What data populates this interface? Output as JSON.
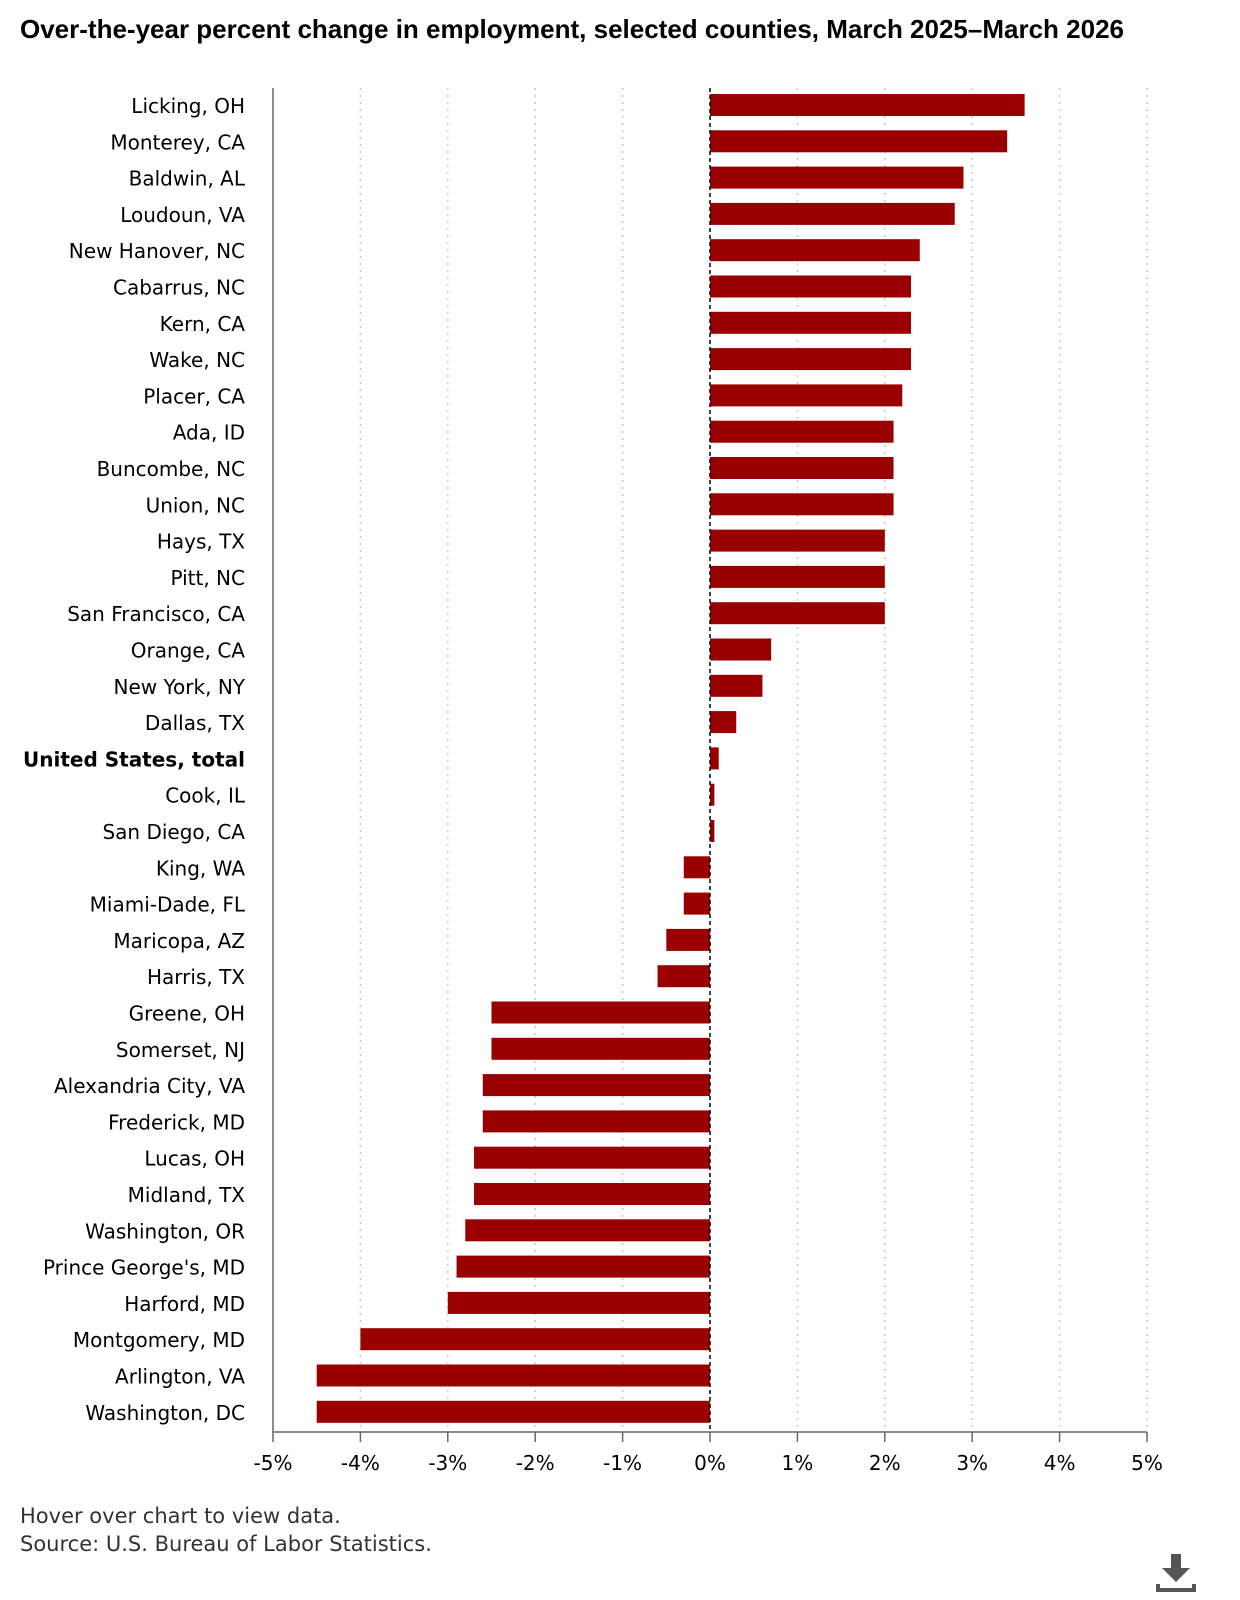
{
  "title": "Over-the-year percent change in employment, selected counties, March 2025–March 2026",
  "footer": {
    "hover_note": "Hover over chart to view data.",
    "source": "Source: U.S. Bureau of Labor Statistics."
  },
  "icons": {
    "download": "download-icon"
  },
  "colors": {
    "bar": "#990000",
    "grid": "#c8c8c8",
    "axis": "#666666",
    "zero_line": "#000000"
  },
  "chart_data": {
    "type": "bar",
    "orientation": "horizontal",
    "title": "Over-the-year percent change in employment, selected counties, March 2025–March 2026",
    "categories": [
      "Licking, OH",
      "Monterey, CA",
      "Baldwin, AL",
      "Loudoun, VA",
      "New Hanover, NC",
      "Cabarrus, NC",
      "Kern, CA",
      "Wake, NC",
      "Placer, CA",
      "Ada, ID",
      "Buncombe, NC",
      "Union, NC",
      "Hays, TX",
      "Pitt, NC",
      "San Francisco, CA",
      "Orange, CA",
      "New York, NY",
      "Dallas, TX",
      "United States, total",
      "Cook, IL",
      "San Diego, CA",
      "King, WA",
      "Miami-Dade, FL",
      "Maricopa, AZ",
      "Harris, TX",
      "Greene, OH",
      "Somerset, NJ",
      "Alexandria City, VA",
      "Frederick, MD",
      "Lucas, OH",
      "Midland, TX",
      "Washington, OR",
      "Prince George's, MD",
      "Harford, MD",
      "Montgomery, MD",
      "Arlington, VA",
      "Washington, DC"
    ],
    "values": [
      3.6,
      3.4,
      2.9,
      2.8,
      2.4,
      2.3,
      2.3,
      2.3,
      2.2,
      2.1,
      2.1,
      2.1,
      2.0,
      2.0,
      2.0,
      0.7,
      0.6,
      0.3,
      0.1,
      0.05,
      0.05,
      -0.3,
      -0.3,
      -0.5,
      -0.6,
      -2.5,
      -2.5,
      -2.6,
      -2.6,
      -2.7,
      -2.7,
      -2.8,
      -2.9,
      -3.0,
      -4.0,
      -4.5,
      -4.5
    ],
    "bold_categories": [
      "United States, total"
    ],
    "xlim": [
      -5,
      5
    ],
    "x_ticks": [
      -5,
      -4,
      -3,
      -2,
      -1,
      0,
      1,
      2,
      3,
      4,
      5
    ],
    "x_tick_labels": [
      "-5%",
      "-4%",
      "-3%",
      "-2%",
      "-1%",
      "0%",
      "1%",
      "2%",
      "3%",
      "4%",
      "5%"
    ],
    "grid": "vertical dotted",
    "legend": "none",
    "xlabel": "",
    "ylabel": ""
  }
}
